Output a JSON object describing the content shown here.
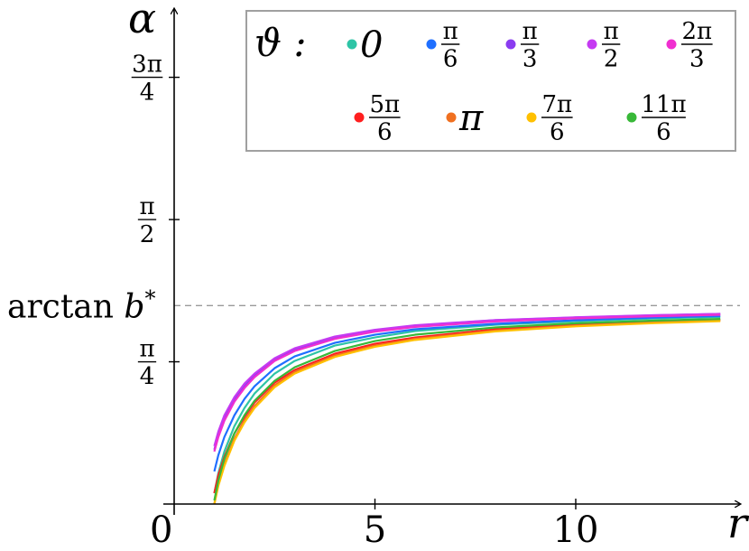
{
  "chart_data": {
    "type": "line",
    "xlabel": "r",
    "ylabel": "α",
    "origin_label": "0",
    "xlim": [
      0,
      14
    ],
    "ylim": [
      0,
      2.55
    ],
    "x_ticks": [
      {
        "value": 5,
        "label": "5"
      },
      {
        "value": 10,
        "label": "10"
      }
    ],
    "y_ticks": [
      {
        "value": 0.7854,
        "num": "π",
        "den": "4"
      },
      {
        "value": 1.5708,
        "num": "π",
        "den": "2"
      },
      {
        "value": 2.3562,
        "num": "3π",
        "den": "4"
      }
    ],
    "asymptote": {
      "label_pre": "arctan ",
      "label_var": "b",
      "label_sup": "*",
      "value": 1.0956
    },
    "legend": {
      "title": "ϑ :",
      "position": "top-right",
      "entries": [
        {
          "label": "0",
          "num": "",
          "den": "",
          "color": "#2ec4a6"
        },
        {
          "label": "",
          "num": "π",
          "den": "6",
          "color": "#1f6fff"
        },
        {
          "label": "",
          "num": "π",
          "den": "3",
          "color": "#8a3cf0"
        },
        {
          "label": "",
          "num": "π",
          "den": "2",
          "color": "#c53af2"
        },
        {
          "label": "",
          "num": "2π",
          "den": "3",
          "color": "#f02fd0"
        },
        {
          "label": "",
          "num": "5π",
          "den": "6",
          "color": "#ff1f1f"
        },
        {
          "label": "π",
          "num": "",
          "den": "",
          "color": "#f07020"
        },
        {
          "label": "",
          "num": "7π",
          "den": "6",
          "color": "#ffc000"
        },
        {
          "label": "",
          "num": "11π",
          "den": "6",
          "color": "#38b838"
        }
      ]
    },
    "series": [
      {
        "color": "#2ec4a6",
        "x": [
          1.0,
          1.1,
          1.25,
          1.5,
          1.75,
          2,
          2.5,
          3,
          4,
          5,
          6,
          8,
          10,
          12,
          13.6
        ],
        "y": [
          0.06,
          0.17,
          0.29,
          0.43,
          0.53,
          0.61,
          0.72,
          0.79,
          0.875,
          0.92,
          0.955,
          0.99,
          1.01,
          1.025,
          1.033
        ]
      },
      {
        "color": "#1f6fff",
        "x": [
          1.0,
          1.1,
          1.25,
          1.5,
          1.75,
          2,
          2.5,
          3,
          4,
          5,
          6,
          8,
          10,
          12,
          13.6
        ],
        "y": [
          0.18,
          0.27,
          0.37,
          0.49,
          0.58,
          0.65,
          0.75,
          0.815,
          0.89,
          0.935,
          0.965,
          0.995,
          1.015,
          1.03,
          1.038
        ]
      },
      {
        "color": "#8a3cf0",
        "x": [
          1.0,
          1.1,
          1.25,
          1.5,
          1.75,
          2,
          2.5,
          3,
          4,
          5,
          6,
          8,
          10,
          12,
          13.6
        ],
        "y": [
          0.3,
          0.38,
          0.47,
          0.575,
          0.65,
          0.71,
          0.8,
          0.855,
          0.92,
          0.96,
          0.985,
          1.015,
          1.03,
          1.042,
          1.05
        ]
      },
      {
        "color": "#c53af2",
        "x": [
          1.0,
          1.1,
          1.25,
          1.5,
          1.75,
          2,
          2.5,
          3,
          4,
          5,
          6,
          8,
          10,
          12,
          13.6
        ],
        "y": [
          0.32,
          0.4,
          0.49,
          0.59,
          0.665,
          0.72,
          0.805,
          0.86,
          0.925,
          0.962,
          0.987,
          1.016,
          1.031,
          1.043,
          1.05
        ]
      },
      {
        "color": "#f02fd0",
        "x": [
          1.0,
          1.1,
          1.25,
          1.5,
          1.75,
          2,
          2.5,
          3,
          4,
          5,
          6,
          8,
          10,
          12,
          13.6
        ],
        "y": [
          0.29,
          0.37,
          0.46,
          0.565,
          0.64,
          0.7,
          0.79,
          0.845,
          0.912,
          0.952,
          0.978,
          1.008,
          1.025,
          1.037,
          1.045
        ]
      },
      {
        "color": "#ff1f1f",
        "x": [
          1.0,
          1.1,
          1.25,
          1.5,
          1.75,
          2,
          2.5,
          3,
          4,
          5,
          6,
          8,
          10,
          12,
          13.6
        ],
        "y": [
          0.06,
          0.16,
          0.26,
          0.39,
          0.48,
          0.56,
          0.67,
          0.74,
          0.83,
          0.885,
          0.92,
          0.965,
          0.99,
          1.007,
          1.017
        ]
      },
      {
        "color": "#f07020",
        "x": [
          1.0,
          1.1,
          1.25,
          1.5,
          1.75,
          2,
          2.5,
          3,
          4,
          5,
          6,
          8,
          10,
          12,
          13.6
        ],
        "y": [
          0.0,
          0.11,
          0.22,
          0.36,
          0.46,
          0.54,
          0.655,
          0.73,
          0.82,
          0.875,
          0.912,
          0.958,
          0.985,
          1.003,
          1.013
        ]
      },
      {
        "color": "#ffc000",
        "x": [
          1.0,
          1.1,
          1.25,
          1.5,
          1.75,
          2,
          2.5,
          3,
          4,
          5,
          6,
          8,
          10,
          12,
          13.6
        ],
        "y": [
          0.0,
          0.1,
          0.21,
          0.35,
          0.45,
          0.53,
          0.645,
          0.72,
          0.812,
          0.868,
          0.906,
          0.953,
          0.981,
          0.999,
          1.01
        ]
      },
      {
        "color": "#38b838",
        "x": [
          1.0,
          1.1,
          1.25,
          1.5,
          1.75,
          2,
          2.5,
          3,
          4,
          5,
          6,
          8,
          10,
          12,
          13.6
        ],
        "y": [
          0.02,
          0.13,
          0.25,
          0.39,
          0.49,
          0.57,
          0.68,
          0.755,
          0.845,
          0.9,
          0.935,
          0.975,
          0.998,
          1.013,
          1.022
        ]
      }
    ]
  }
}
